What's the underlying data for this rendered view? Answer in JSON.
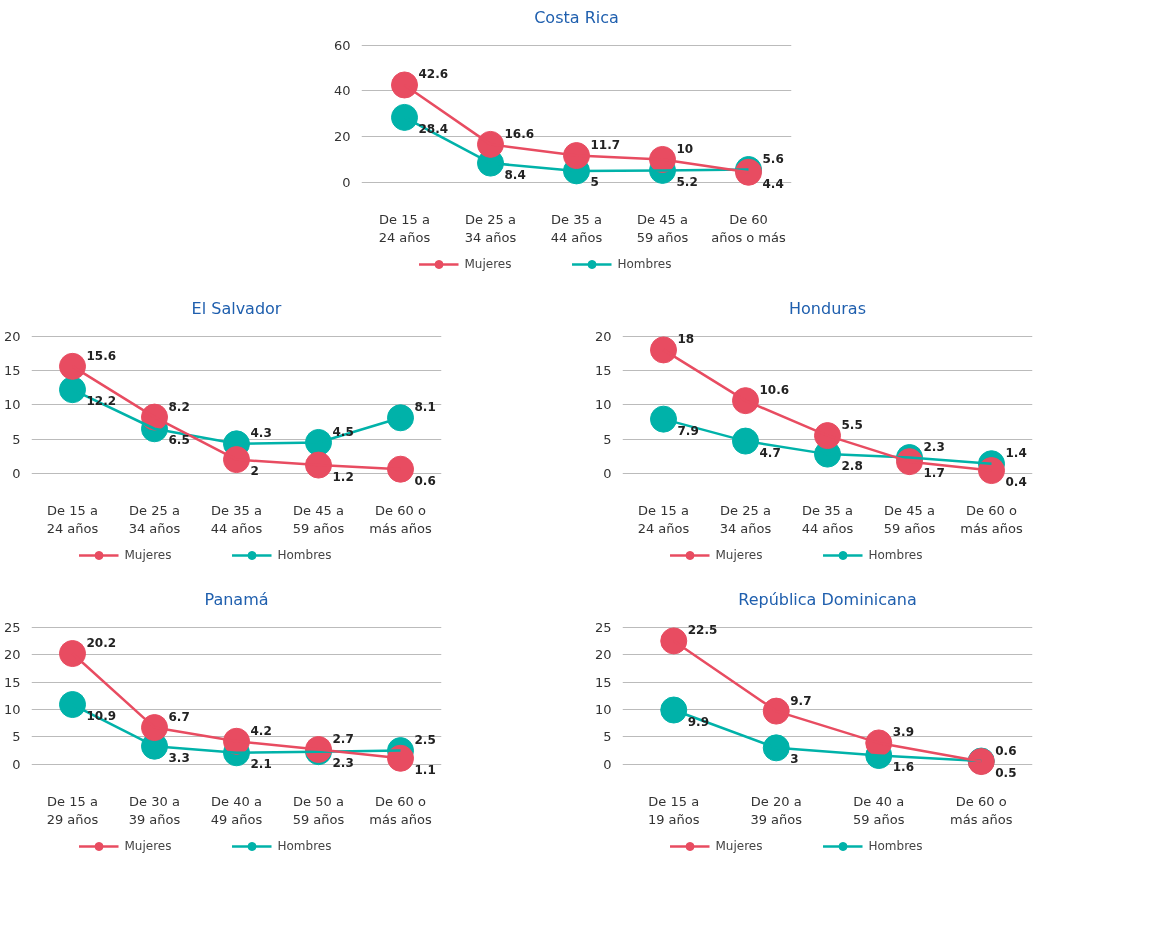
{
  "chart_data": [
    {
      "type": "line",
      "title": "Costa Rica",
      "categories": [
        "De 15 a 24 años",
        "De 25 a 34 años",
        "De 35 a 44 años",
        "De 45 a 59 años",
        "De 60 años o más"
      ],
      "series": [
        {
          "name": "Mujeres",
          "color": "#e84c61",
          "values": [
            42.6,
            16.6,
            11.7,
            10,
            4.4
          ]
        },
        {
          "name": "Hombres",
          "color": "#00b2a9",
          "values": [
            28.4,
            8.4,
            5,
            5.2,
            5.6
          ]
        }
      ],
      "ylim": [
        0,
        60
      ],
      "yticks": [
        0,
        20,
        40,
        60
      ],
      "grid": "y",
      "legend": "bottom",
      "marker": "circle",
      "data_labels": true
    },
    {
      "type": "line",
      "title": "El Salvador",
      "categories": [
        "De 15 a 24 años",
        "De 25 a 34 años",
        "De 35 a 44 años",
        "De 45 a 59 años",
        "De 60 o más años"
      ],
      "series": [
        {
          "name": "Mujeres",
          "color": "#e84c61",
          "values": [
            15.6,
            8.2,
            2,
            1.2,
            0.6
          ]
        },
        {
          "name": "Hombres",
          "color": "#00b2a9",
          "values": [
            12.2,
            6.5,
            4.3,
            4.5,
            8.1
          ]
        }
      ],
      "ylim": [
        0,
        20
      ],
      "yticks": [
        0,
        5,
        10,
        15,
        20
      ],
      "grid": "y",
      "legend": "bottom",
      "marker": "circle",
      "data_labels": true
    },
    {
      "type": "line",
      "title": "Honduras",
      "categories": [
        "De 15 a 24 años",
        "De 25 a 34 años",
        "De 35 a 44 años",
        "De 45 a 59 años",
        "De 60 o más años"
      ],
      "series": [
        {
          "name": "Mujeres",
          "color": "#e84c61",
          "values": [
            18,
            10.6,
            5.5,
            1.7,
            0.4
          ]
        },
        {
          "name": "Hombres",
          "color": "#00b2a9",
          "values": [
            7.9,
            4.7,
            2.8,
            2.3,
            1.4
          ]
        }
      ],
      "ylim": [
        0,
        20
      ],
      "yticks": [
        0,
        5,
        10,
        15,
        20
      ],
      "grid": "y",
      "legend": "bottom",
      "marker": "circle",
      "data_labels": true
    },
    {
      "type": "line",
      "title": "Panamá",
      "categories": [
        "De 15 a 29 años",
        "De 30 a 39 años",
        "De 40 a 49 años",
        "De 50 a 59 años",
        "De 60 o más años"
      ],
      "series": [
        {
          "name": "Mujeres",
          "color": "#e84c61",
          "values": [
            20.2,
            6.7,
            4.2,
            2.7,
            1.1
          ]
        },
        {
          "name": "Hombres",
          "color": "#00b2a9",
          "values": [
            10.9,
            3.3,
            2.1,
            2.3,
            2.5
          ]
        }
      ],
      "ylim": [
        0,
        25
      ],
      "yticks": [
        0,
        5,
        10,
        15,
        20,
        25
      ],
      "grid": "y",
      "legend": "bottom",
      "marker": "circle",
      "data_labels": true
    },
    {
      "type": "line",
      "title": "República Dominicana",
      "categories": [
        "De 15 a 19 años",
        "De 20 a 39 años",
        "De 40 a 59 años",
        "De 60 o más años"
      ],
      "series": [
        {
          "name": "Mujeres",
          "color": "#e84c61",
          "values": [
            22.5,
            9.7,
            3.9,
            0.5
          ]
        },
        {
          "name": "Hombres",
          "color": "#00b2a9",
          "values": [
            9.9,
            3,
            1.6,
            0.6
          ]
        }
      ],
      "ylim": [
        0,
        25
      ],
      "yticks": [
        0,
        5,
        10,
        15,
        20,
        25
      ],
      "grid": "y",
      "legend": "bottom",
      "marker": "circle",
      "data_labels": true
    }
  ]
}
